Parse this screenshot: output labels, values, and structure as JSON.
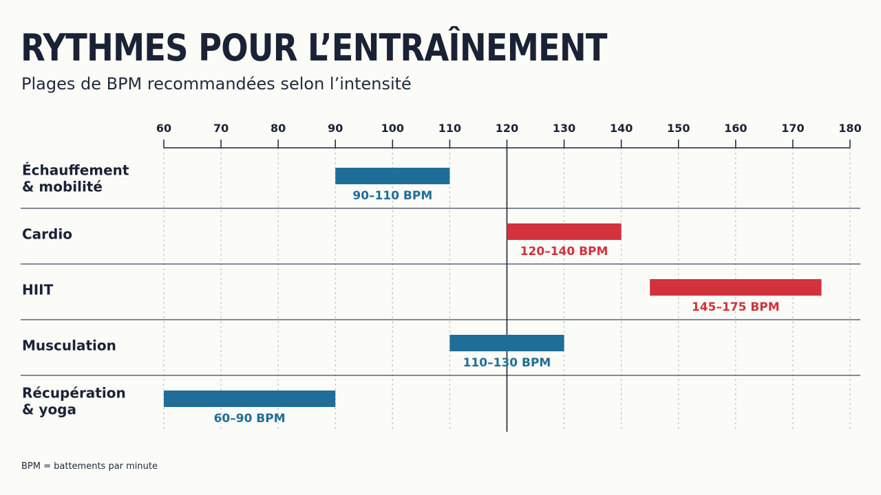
{
  "header": {
    "title": "RYTHMES POUR L’ENTRAÎNEMENT",
    "subtitle": "Plages de BPM recommandées selon l’intensité"
  },
  "footnote": "BPM = battements par minute",
  "colors": {
    "blue": "#1f6e99",
    "red": "#d2323c",
    "text": "#1a2236",
    "grid": "#b5b9c1",
    "divider": "#3a4660"
  },
  "chart_data": {
    "type": "bar",
    "orientation": "horizontal-range",
    "title": "RYTHMES POUR L’ENTRAÎNEMENT",
    "subtitle": "Plages de BPM recommandées selon l’intensité",
    "xlim": [
      60,
      180
    ],
    "x_ticks": [
      60,
      70,
      80,
      90,
      100,
      110,
      120,
      130,
      140,
      150,
      160,
      170,
      180
    ],
    "axis_position": "top",
    "grid": true,
    "reference_line": 120,
    "categories": [
      {
        "label": [
          "Échauffement",
          "& mobilité"
        ],
        "start": 90,
        "end": 110,
        "value_label": "90–110 BPM",
        "color": "blue"
      },
      {
        "label": [
          "Cardio"
        ],
        "start": 120,
        "end": 140,
        "value_label": "120–140 BPM",
        "color": "red"
      },
      {
        "label": [
          "HIIT"
        ],
        "start": 145,
        "end": 175,
        "value_label": "145–175 BPM",
        "color": "red"
      },
      {
        "label": [
          "Musculation"
        ],
        "start": 110,
        "end": 130,
        "value_label": "110–130 BPM",
        "color": "blue"
      },
      {
        "label": [
          "Récupération",
          "& yoga"
        ],
        "start": 60,
        "end": 90,
        "value_label": "60–90 BPM",
        "color": "blue"
      }
    ]
  }
}
